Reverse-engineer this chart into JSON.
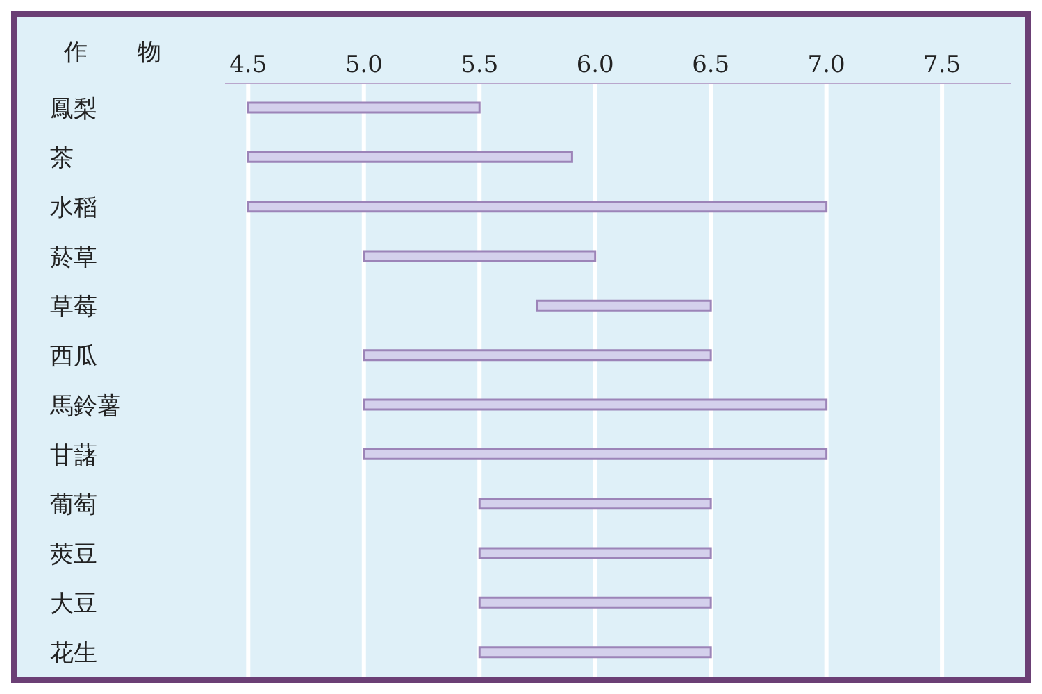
{
  "chart_data": {
    "type": "bar",
    "orientation": "horizontal",
    "ylabel": "作物",
    "categories": [
      "鳳梨",
      "茶",
      "水稻",
      "菸草",
      "草莓",
      "西瓜",
      "馬鈴薯",
      "甘藷",
      "葡萄",
      "莢豆",
      "大豆",
      "花生"
    ],
    "base": [
      4.5,
      4.5,
      4.5,
      5.0,
      5.75,
      5.0,
      5.0,
      5.0,
      5.5,
      5.5,
      5.5,
      5.5
    ],
    "values": [
      1.0,
      1.4,
      2.5,
      1.0,
      0.75,
      1.5,
      2.0,
      2.0,
      1.0,
      1.0,
      1.0,
      1.0
    ],
    "color": "#d4d0ec",
    "xlim": [
      4.4,
      7.8
    ],
    "xticks": [
      4.5,
      {
        "value": 5,
        "label": "5.0"
      },
      5.5,
      {
        "value": 6,
        "label": "6.0"
      },
      6.5,
      {
        "value": 7,
        "label": "7.0"
      },
      7.5
    ],
    "grid": "x"
  }
}
